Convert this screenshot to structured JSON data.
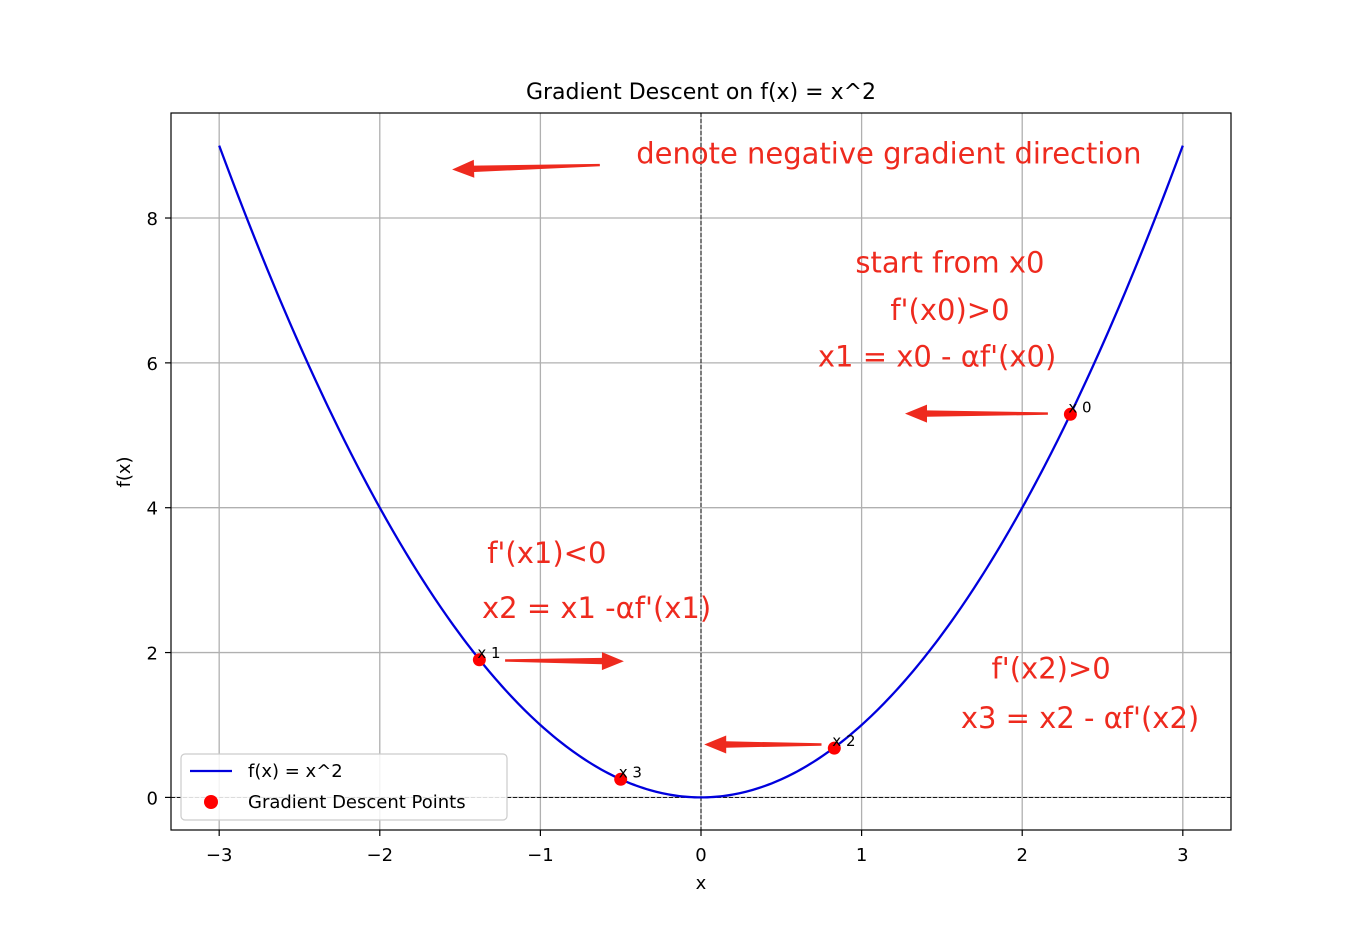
{
  "chart_data": {
    "type": "line",
    "title": "Gradient Descent on f(x) = x^2",
    "xlabel": "x",
    "ylabel": "f(x)",
    "xlim": [
      -3.3,
      3.3
    ],
    "ylim": [
      -0.45,
      9.45
    ],
    "x_ticks": [
      -3,
      -2,
      -1,
      0,
      1,
      2,
      3
    ],
    "x_tick_labels": [
      "−3",
      "−2",
      "−1",
      "0",
      "1",
      "2",
      "3"
    ],
    "y_ticks": [
      0,
      2,
      4,
      6,
      8
    ],
    "y_tick_labels": [
      "0",
      "2",
      "4",
      "6",
      "8"
    ],
    "grid": true,
    "curve": {
      "name": "f(x) = x^2",
      "color": "#0000dd",
      "x_range": [
        -3,
        3
      ]
    },
    "points": {
      "name": "Gradient Descent Points",
      "color": "#ff0000",
      "items": [
        {
          "label": "x 0",
          "x": 2.3,
          "y": 5.29
        },
        {
          "label": "x 1",
          "x": -1.38,
          "y": 1.9
        },
        {
          "label": "x 2",
          "x": 0.83,
          "y": 0.68
        },
        {
          "label": "x 3",
          "x": -0.5,
          "y": 0.25
        }
      ]
    },
    "arrows": [
      {
        "from": [
          -0.63,
          8.73
        ],
        "to": [
          -1.55,
          8.67
        ]
      },
      {
        "from": [
          2.16,
          5.3
        ],
        "to": [
          1.27,
          5.3
        ]
      },
      {
        "from": [
          -1.22,
          1.89
        ],
        "to": [
          -0.48,
          1.88
        ]
      },
      {
        "from": [
          0.75,
          0.73
        ],
        "to": [
          0.02,
          0.73
        ]
      }
    ],
    "annotations": [
      {
        "text": "denote negative gradient direction",
        "x": 1.17,
        "y": 8.75
      },
      {
        "text": "start from x0",
        "x": 1.55,
        "y": 7.25
      },
      {
        "text": "f'(x0)>0",
        "x": 1.55,
        "y": 6.59
      },
      {
        "text": "x1 = x0 - αf'(x0)",
        "x": 1.47,
        "y": 5.95
      },
      {
        "text": "f'(x1)<0",
        "x": -0.96,
        "y": 3.24
      },
      {
        "text": "x2 = x1 -αf'(x1)",
        "x": -0.65,
        "y": 2.48
      },
      {
        "text": "f'(x2)>0",
        "x": 2.18,
        "y": 1.64
      },
      {
        "text": "x3 = x2 - αf'(x2)",
        "x": 2.36,
        "y": 0.96
      }
    ],
    "legend": {
      "placement": "lower-left",
      "entries": [
        {
          "label": "f(x) = x^2",
          "marker": "line",
          "color": "#0000dd"
        },
        {
          "label": "Gradient Descent Points",
          "marker": "dot",
          "color": "#ff0000"
        }
      ]
    },
    "reference_lines": {
      "x0_dashed": true,
      "y0_dashed": true
    },
    "annotation_color": "#ee2a1e"
  }
}
